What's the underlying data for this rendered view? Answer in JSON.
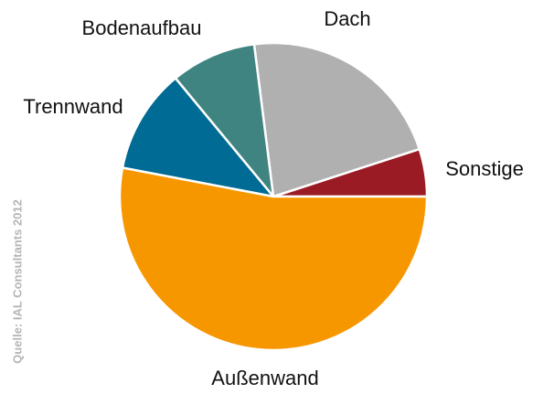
{
  "chart_data": {
    "type": "pie",
    "categories": [
      "Sonstige",
      "Dach",
      "Bodenaufbau",
      "Trennwand",
      "Außenwand"
    ],
    "values": [
      5,
      22,
      9,
      11,
      53
    ],
    "colors": [
      "#9b1b24",
      "#b0b0b0",
      "#3f8480",
      "#006b94",
      "#f79700"
    ],
    "source": "Quelle: IAL Consultants 2012"
  }
}
